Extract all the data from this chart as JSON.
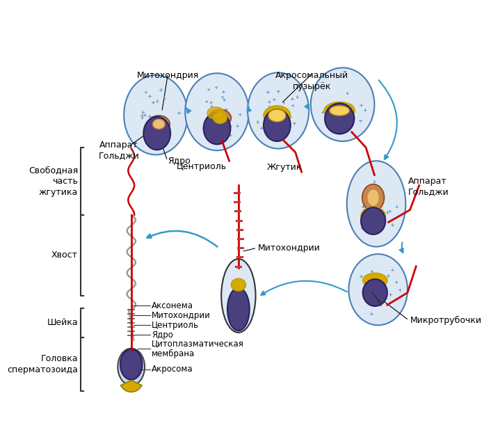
{
  "bg_color": "#ffffff",
  "cell_outline_color": "#4a7fb5",
  "cell_fill_color": "#dde8f5",
  "nucleus_color": "#4a4080",
  "acrosome_color": "#d4aa00",
  "golgi_color": "#c8864a",
  "flagellum_color": "#cc0000",
  "arrow_color": "#3399cc",
  "text_color": "#000000",
  "label_top1": "Митохондрия",
  "label_top2": "Акросомальный\nпузырёк",
  "label_golgi1": "Аппарат\nГольджи",
  "label_nucleus1": "Ядро",
  "label_centriole1": "Центриоль",
  "label_flagellum1": "Жгутик",
  "label_mitochondria2": "Митохондрии",
  "label_golgi2": "Аппарат\nГольджи",
  "label_microtubules": "Микротрубочки",
  "label_free_flagellum": "Свободная\nчасть\nжгутика",
  "label_tail": "Хвост",
  "label_neck": "Шейка",
  "label_head": "Головка\nсперматозоида",
  "label_axoneme": "Аксонема",
  "label_mitochondria3": "Митохондрии",
  "label_centriole2": "Центриоль",
  "label_nucleus2": "Ядро",
  "label_membrane": "Цитоплазматическая\nмембрана",
  "label_acrosome": "Акросома"
}
